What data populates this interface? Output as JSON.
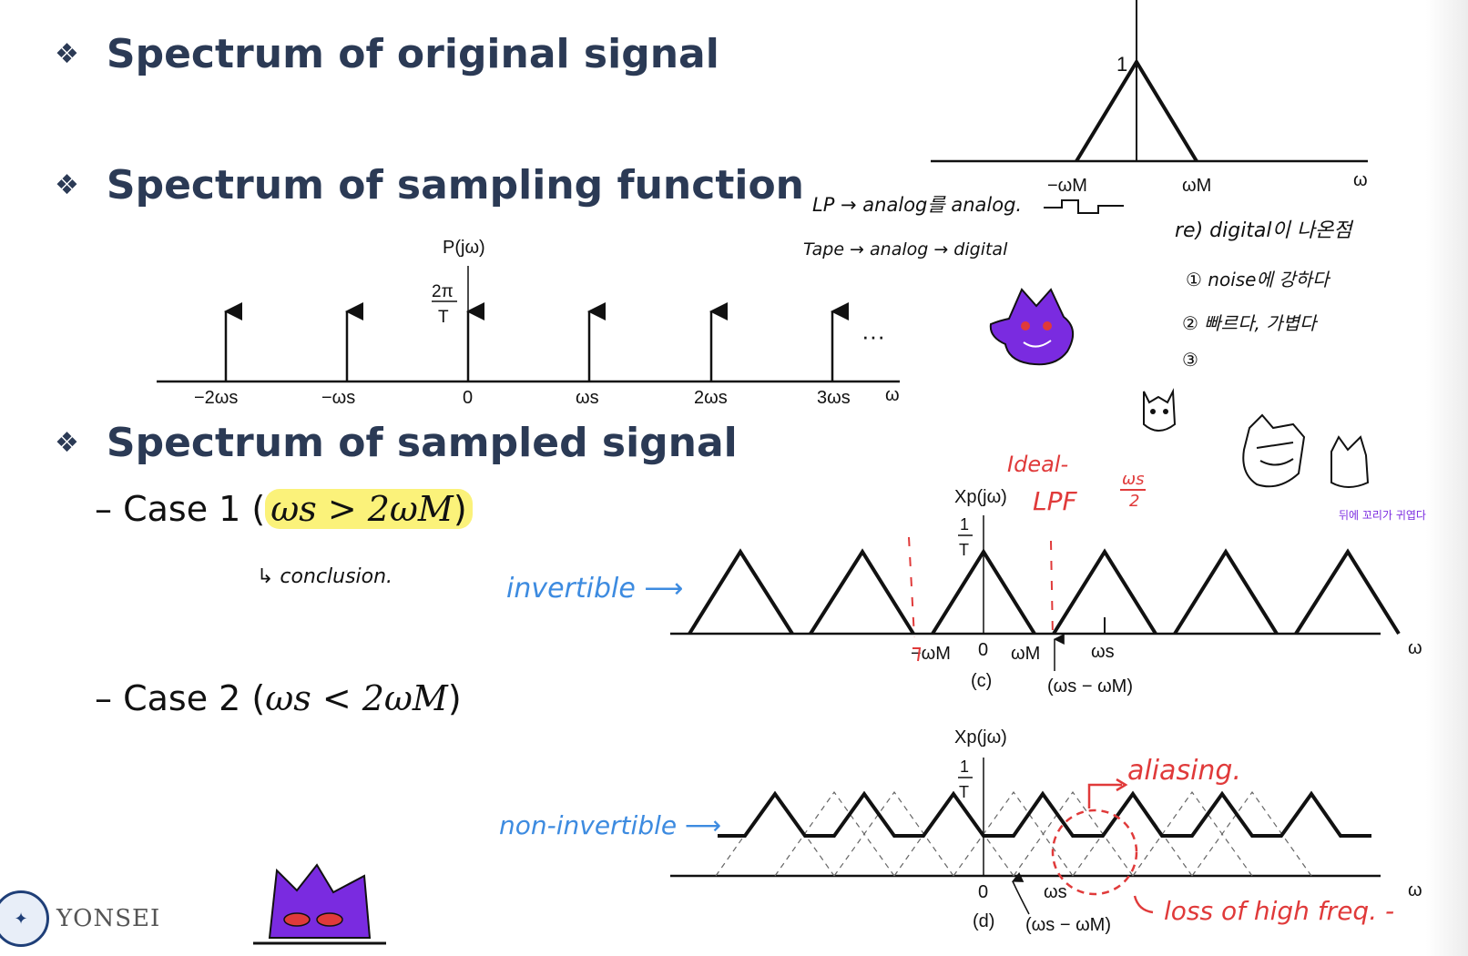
{
  "headings": {
    "bullet": "❖",
    "original": "Spectrum of original signal",
    "sampling": "Spectrum of sampling function",
    "sampled": "Spectrum of sampled signal"
  },
  "cases": {
    "case1_prefix": "– Case 1 (",
    "case1_math": "ωs > 2ωM",
    "case1_suffix": ")",
    "case2_prefix": "– Case 2 (",
    "case2_math": "ωs < 2ωM",
    "case2_suffix": ")"
  },
  "original_plot": {
    "left_label": "−ωM",
    "right_label": "ωM",
    "axis_label": "ω",
    "peak_label": "1"
  },
  "sampling_plot": {
    "title": "P(jω)",
    "height_num": "2π",
    "height_den": "T",
    "ellipsis": "···",
    "axis_label": "ω",
    "ticks": [
      "−2ωs",
      "−ωs",
      "0",
      "ωs",
      "2ωs",
      "3ωs"
    ]
  },
  "plot_c": {
    "title": "Xp(jω)",
    "height_num": "1",
    "height_den": "T",
    "labels": [
      "−ωM",
      "0",
      "ωM",
      "ωs"
    ],
    "caption": "(c)",
    "bottom_label": "(ωs − ωM)",
    "axis_label": "ω"
  },
  "plot_d": {
    "title": "Xp(jω)",
    "height_num": "1",
    "height_den": "T",
    "zero": "0",
    "ws": "ωs",
    "caption": "(d)",
    "bottom_label": "(ωs − ωM)",
    "axis_label": "ω"
  },
  "annotations": {
    "conclusion": "↳ conclusion.",
    "invertible": "invertible ⟶",
    "non_invertible": "non-invertible ⟶",
    "ideal": "Ideal-",
    "lpf": "LPF",
    "ws_half_num": "ωs",
    "ws_half_den": "2",
    "aliasing": "aliasing.",
    "loss": "loss of high freq. -",
    "note_lp1": "LP → analog를 analog.",
    "note_lp2": "Tape → analog → digital",
    "note_re": "re) digital이 나온점",
    "note_1": "① noise에 강하다",
    "note_2": "② 빠르다, 가볍다",
    "note_3": "③",
    "note_purple": "뒤에 꼬리가 귀엽다."
  },
  "logo": {
    "name": "YONSEI"
  },
  "colors": {
    "heading": "#2b3a55",
    "blue_ink": "#3d8be0",
    "red_ink": "#e03a3a",
    "purple_ink": "#7a2be0",
    "highlight": "#fbf27a"
  }
}
